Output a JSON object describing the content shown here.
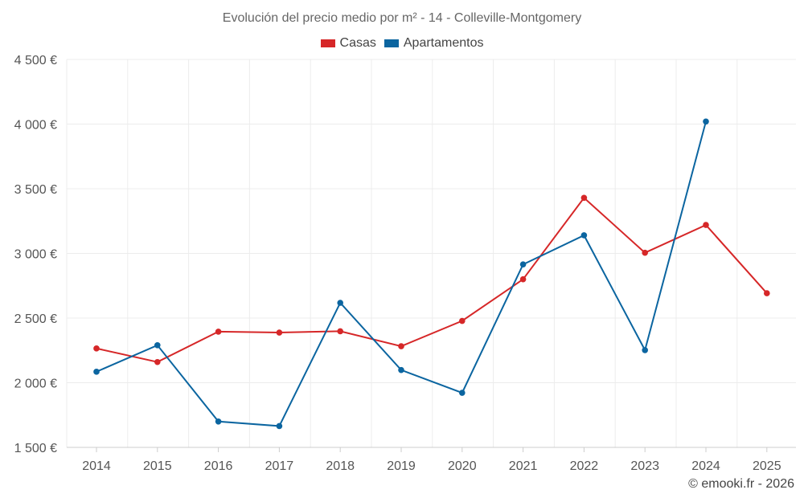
{
  "chart_data": {
    "type": "line",
    "title": "Evolución del precio medio por m² - 14 - Colleville-Montgomery",
    "categories": [
      "2014",
      "2015",
      "2016",
      "2017",
      "2018",
      "2019",
      "2020",
      "2021",
      "2022",
      "2023",
      "2024",
      "2025"
    ],
    "series": [
      {
        "name": "Casas",
        "color": "#d62728",
        "values": [
          2265,
          2160,
          2395,
          2388,
          2398,
          2282,
          2478,
          2800,
          3430,
          3005,
          3220,
          2692
        ]
      },
      {
        "name": "Apartamentos",
        "color": "#0b65a0",
        "values": [
          2085,
          2290,
          1700,
          1665,
          2618,
          2098,
          1922,
          2915,
          3140,
          2252,
          4020,
          null
        ]
      }
    ],
    "yticks": [
      {
        "value": 1500,
        "label": "1 500 €"
      },
      {
        "value": 2000,
        "label": "2 000 €"
      },
      {
        "value": 2500,
        "label": "2 500 €"
      },
      {
        "value": 3000,
        "label": "3 000 €"
      },
      {
        "value": 3500,
        "label": "3 500 €"
      },
      {
        "value": 4000,
        "label": "4 000 €"
      },
      {
        "value": 4500,
        "label": "4 500 €"
      }
    ],
    "ylim": [
      1500,
      4500
    ],
    "xlabel": "",
    "ylabel": "",
    "grid": true,
    "legend_position": "top-center"
  },
  "credit": "© emooki.fr - 2026"
}
